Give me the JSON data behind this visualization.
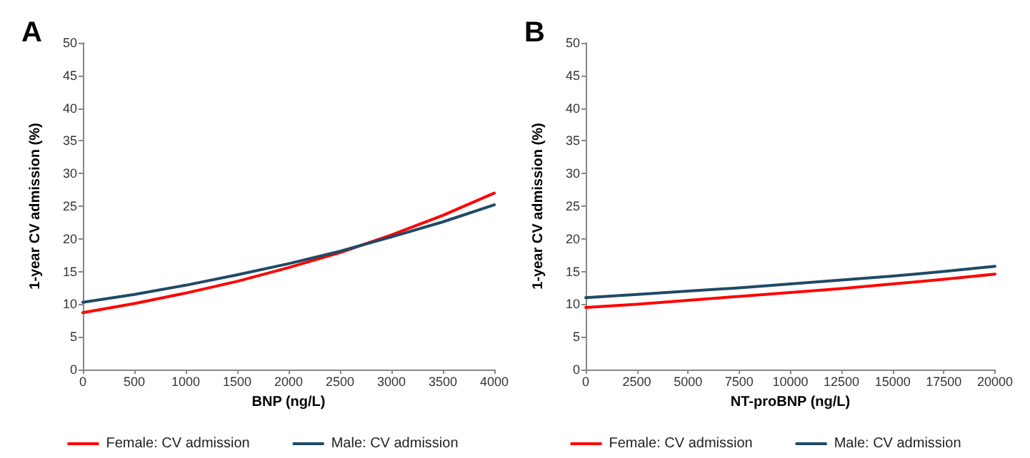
{
  "chart_data": [
    {
      "type": "line",
      "title": "A",
      "xlabel": "BNP (ng/L)",
      "ylabel": "1-year CV admission (%)",
      "x": [
        0,
        500,
        1000,
        1500,
        2000,
        2500,
        3000,
        3500,
        4000
      ],
      "series": [
        {
          "name": "Female: CV admission",
          "color": "#ff0000",
          "values": [
            8.7,
            10.1,
            11.7,
            13.5,
            15.6,
            17.9,
            20.6,
            23.6,
            27.0
          ]
        },
        {
          "name": "Male: CV admission",
          "color": "#1f4a66",
          "values": [
            10.3,
            11.5,
            12.9,
            14.5,
            16.2,
            18.1,
            20.3,
            22.6,
            25.2
          ]
        }
      ],
      "xlim": [
        0,
        4000
      ],
      "xticks": [
        0,
        500,
        1000,
        1500,
        2000,
        2500,
        3000,
        3500,
        4000
      ],
      "ylim": [
        0,
        50
      ],
      "yticks": [
        0,
        5,
        10,
        15,
        20,
        25,
        30,
        35,
        40,
        45,
        50
      ],
      "grid": false,
      "legend": "bottom",
      "marker": "none",
      "line_style": "solid"
    },
    {
      "type": "line",
      "title": "B",
      "xlabel": "NT-proBNP (ng/L)",
      "ylabel": "1-year CV admission (%)",
      "x": [
        0,
        2500,
        5000,
        7500,
        10000,
        12500,
        15000,
        17500,
        20000
      ],
      "series": [
        {
          "name": "Female: CV admission",
          "color": "#ff0000",
          "values": [
            9.5,
            10.0,
            10.6,
            11.2,
            11.8,
            12.4,
            13.1,
            13.8,
            14.6
          ]
        },
        {
          "name": "Male: CV admission",
          "color": "#1f4a66",
          "values": [
            11.0,
            11.5,
            12.0,
            12.5,
            13.1,
            13.7,
            14.3,
            15.0,
            15.8
          ]
        }
      ],
      "xlim": [
        0,
        20000
      ],
      "xticks": [
        0,
        2500,
        5000,
        7500,
        10000,
        12500,
        15000,
        17500,
        20000
      ],
      "ylim": [
        0,
        50
      ],
      "yticks": [
        0,
        5,
        10,
        15,
        20,
        25,
        30,
        35,
        40,
        45,
        50
      ],
      "grid": false,
      "legend": "bottom",
      "marker": "none",
      "line_style": "solid"
    }
  ]
}
